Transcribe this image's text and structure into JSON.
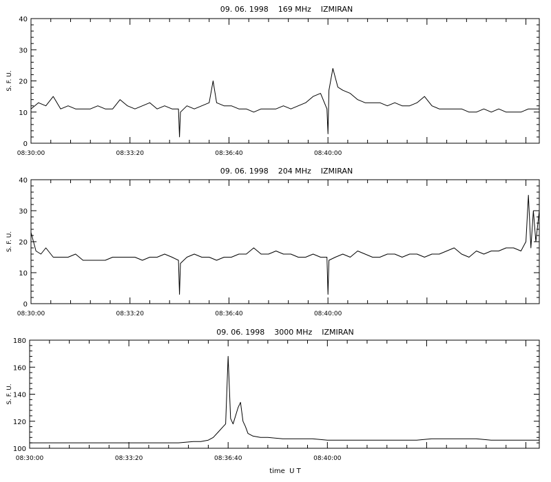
{
  "figure": {
    "xlabel": "time  U T"
  },
  "chart_data": [
    {
      "type": "line",
      "title": "09. 06. 1998    169 MHz    IZMIRAN",
      "ylabel": "S. F. U.",
      "xlim": [
        "08:30:00",
        "08:47:07"
      ],
      "ylim": [
        0,
        40
      ],
      "yticks": [
        0,
        10,
        20,
        30,
        40
      ],
      "xticks": [
        "08:30:00",
        "08:33:20",
        "08:36:40",
        "08:40:00"
      ],
      "grid": false,
      "series": [
        {
          "x": [
            "08:30:00",
            "08:30:15",
            "08:30:30",
            "08:30:45",
            "08:31:00",
            "08:31:15",
            "08:31:30",
            "08:31:45",
            "08:32:00",
            "08:32:15",
            "08:32:30",
            "08:32:45",
            "08:33:00",
            "08:33:15",
            "08:33:30",
            "08:33:45",
            "08:34:00",
            "08:34:15",
            "08:34:30",
            "08:34:45",
            "08:34:58",
            "08:35:00",
            "08:35:02",
            "08:35:15",
            "08:35:30",
            "08:35:45",
            "08:36:00",
            "08:36:08",
            "08:36:15",
            "08:36:30",
            "08:36:45",
            "08:37:00",
            "08:37:15",
            "08:37:30",
            "08:37:45",
            "08:38:00",
            "08:38:15",
            "08:38:30",
            "08:38:45",
            "08:39:00",
            "08:39:15",
            "08:39:30",
            "08:39:45",
            "08:39:58",
            "08:40:00",
            "08:40:02",
            "08:40:10",
            "08:40:20",
            "08:40:30",
            "08:40:45",
            "08:41:00",
            "08:41:15",
            "08:41:30",
            "08:41:45",
            "08:42:00",
            "08:42:15",
            "08:42:30",
            "08:42:45",
            "08:43:00",
            "08:43:15",
            "08:43:30",
            "08:43:45",
            "08:44:00",
            "08:44:15",
            "08:44:30",
            "08:44:45",
            "08:45:00",
            "08:45:15",
            "08:45:30",
            "08:45:45",
            "08:46:00",
            "08:46:15",
            "08:46:30",
            "08:46:45",
            "08:47:07"
          ],
          "values": [
            11,
            13,
            12,
            15,
            11,
            12,
            11,
            11,
            11,
            12,
            11,
            11,
            14,
            12,
            11,
            12,
            13,
            11,
            12,
            11,
            11,
            2,
            10,
            12,
            11,
            12,
            13,
            20,
            13,
            12,
            12,
            11,
            11,
            10,
            11,
            11,
            11,
            12,
            11,
            12,
            13,
            15,
            16,
            11,
            3,
            17,
            24,
            18,
            17,
            16,
            14,
            13,
            13,
            13,
            12,
            13,
            12,
            12,
            13,
            15,
            12,
            11,
            11,
            11,
            11,
            10,
            10,
            11,
            10,
            11,
            10,
            10,
            10,
            11,
            11
          ]
        }
      ]
    },
    {
      "type": "line",
      "title": "09. 06. 1998    204 MHz    IZMIRAN",
      "ylabel": "S. F. U.",
      "xlim": [
        "08:30:00",
        "08:47:07"
      ],
      "ylim": [
        0,
        40
      ],
      "yticks": [
        0,
        10,
        20,
        30,
        40
      ],
      "xticks": [
        "08:30:00",
        "08:33:20",
        "08:36:40",
        "08:40:00"
      ],
      "grid": false,
      "series": [
        {
          "x": [
            "08:30:00",
            "08:30:05",
            "08:30:10",
            "08:30:20",
            "08:30:30",
            "08:30:45",
            "08:31:00",
            "08:31:15",
            "08:31:30",
            "08:31:45",
            "08:32:00",
            "08:32:15",
            "08:32:30",
            "08:32:45",
            "08:33:00",
            "08:33:15",
            "08:33:30",
            "08:33:45",
            "08:34:00",
            "08:34:15",
            "08:34:30",
            "08:34:45",
            "08:34:58",
            "08:35:00",
            "08:35:02",
            "08:35:15",
            "08:35:30",
            "08:35:45",
            "08:36:00",
            "08:36:15",
            "08:36:30",
            "08:36:45",
            "08:37:00",
            "08:37:15",
            "08:37:30",
            "08:37:45",
            "08:38:00",
            "08:38:15",
            "08:38:30",
            "08:38:45",
            "08:39:00",
            "08:39:15",
            "08:39:30",
            "08:39:45",
            "08:39:58",
            "08:40:00",
            "08:40:02",
            "08:40:15",
            "08:40:30",
            "08:40:45",
            "08:41:00",
            "08:41:15",
            "08:41:30",
            "08:41:45",
            "08:42:00",
            "08:42:15",
            "08:42:30",
            "08:42:45",
            "08:43:00",
            "08:43:15",
            "08:43:30",
            "08:43:45",
            "08:44:00",
            "08:44:15",
            "08:44:30",
            "08:44:45",
            "08:45:00",
            "08:45:15",
            "08:45:30",
            "08:45:45",
            "08:46:00",
            "08:46:15",
            "08:46:30",
            "08:46:40",
            "08:46:45",
            "08:46:50",
            "08:46:55",
            "08:47:00",
            "08:47:07"
          ],
          "values": [
            23,
            20,
            17,
            16,
            18,
            15,
            15,
            15,
            16,
            14,
            14,
            14,
            14,
            15,
            15,
            15,
            15,
            14,
            15,
            15,
            16,
            15,
            14,
            3,
            13,
            15,
            16,
            15,
            15,
            14,
            15,
            15,
            16,
            16,
            18,
            16,
            16,
            17,
            16,
            16,
            15,
            15,
            16,
            15,
            15,
            3,
            14,
            15,
            16,
            15,
            17,
            16,
            15,
            15,
            16,
            16,
            15,
            16,
            16,
            15,
            16,
            16,
            17,
            18,
            16,
            15,
            17,
            16,
            17,
            17,
            18,
            18,
            17,
            20,
            35,
            18,
            30,
            20,
            30
          ]
        }
      ]
    },
    {
      "type": "line",
      "title": "09. 06. 1998    3000 MHz    IZMIRAN",
      "ylabel": "S. F. U.",
      "xlim": [
        "08:30:00",
        "08:47:07"
      ],
      "ylim": [
        100,
        180
      ],
      "yticks": [
        100,
        120,
        140,
        160,
        180
      ],
      "xticks": [
        "08:30:00",
        "08:33:20",
        "08:36:40",
        "08:40:00"
      ],
      "grid": false,
      "series": [
        {
          "x": [
            "08:30:00",
            "08:30:30",
            "08:31:00",
            "08:31:30",
            "08:32:00",
            "08:32:30",
            "08:33:00",
            "08:33:30",
            "08:34:00",
            "08:34:30",
            "08:35:00",
            "08:35:30",
            "08:35:45",
            "08:36:00",
            "08:36:10",
            "08:36:20",
            "08:36:30",
            "08:36:35",
            "08:36:40",
            "08:36:45",
            "08:36:50",
            "08:37:00",
            "08:37:05",
            "08:37:10",
            "08:37:15",
            "08:37:20",
            "08:37:30",
            "08:37:45",
            "08:38:00",
            "08:38:30",
            "08:39:00",
            "08:39:30",
            "08:40:00",
            "08:40:30",
            "08:41:00",
            "08:41:30",
            "08:42:00",
            "08:42:30",
            "08:43:00",
            "08:43:30",
            "08:44:00",
            "08:44:30",
            "08:45:00",
            "08:45:30",
            "08:46:00",
            "08:46:30",
            "08:47:07"
          ],
          "values": [
            104,
            104,
            104,
            104,
            104,
            104,
            104,
            104,
            104,
            104,
            104,
            105,
            105,
            106,
            108,
            112,
            116,
            118,
            168,
            122,
            118,
            130,
            134,
            120,
            116,
            111,
            109,
            108,
            108,
            107,
            107,
            107,
            106,
            106,
            106,
            106,
            106,
            106,
            106,
            107,
            107,
            107,
            107,
            106,
            106,
            106,
            106
          ]
        }
      ]
    }
  ]
}
